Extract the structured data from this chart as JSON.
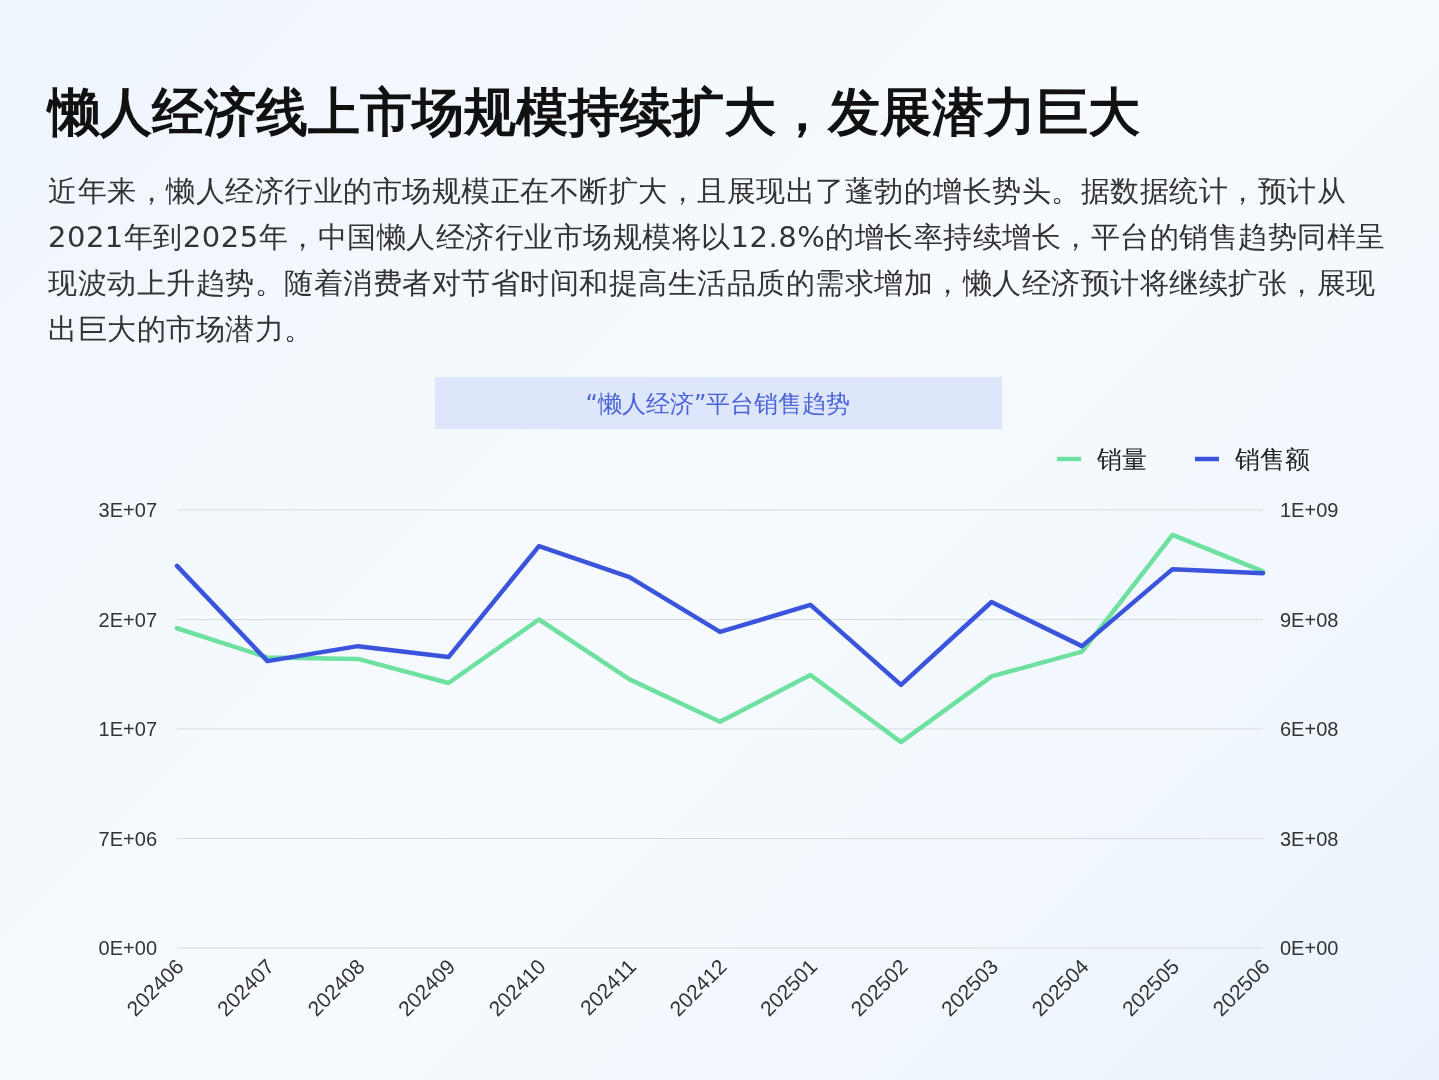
{
  "chart_data": {
    "type": "line",
    "title": "懒人经济线上市场规模持续扩大，发展潜力巨大",
    "subtitle": "近年来，懒人经济行业的市场规模正在不断扩大，且展现出了蓬勃的增长势头。据数据统计，预计从2021年到2025年，中国懒人经济行业市场规模将以12.8%的增长率持续增长，平台的销售趋势同样呈现波动上升趋势。随着消费者对节省时间和提高生活品质的需求增加，懒人经济预计将继续扩张，展现出巨大的市场潜力。",
    "annotations": [
      "“懒人经济”平台销售趋势"
    ],
    "categories": [
      "202406",
      "202407",
      "202408",
      "202409",
      "202410",
      "202411",
      "202412",
      "202501",
      "202502",
      "202503",
      "202504",
      "202505",
      "202506"
    ],
    "series": [
      {
        "name": "销量",
        "color": "#6ee0a0",
        "values": [
          21900000,
          19900000,
          19800000,
          18150000,
          22500000,
          18400000,
          15500000,
          18700000,
          14100000,
          18600000,
          20300000,
          28300000,
          25800000
        ]
      },
      {
        "name": "销售额",
        "color": "#3a55dc",
        "axis": "y2",
        "values": [
          1047000000,
          786000000,
          827000000,
          797000000,
          1101000000,
          1016000000,
          866000000,
          940000000,
          721000000,
          948000000,
          827000000,
          1038000000,
          1027000000
        ]
      }
    ],
    "ylim": [
      0,
      30000000
    ],
    "yticks": [
      {
        "value": 0,
        "label": "0E+00"
      },
      {
        "value": 7500000,
        "label": "7E+06"
      },
      {
        "value": 15000000,
        "label": "1E+07"
      },
      {
        "value": 22500000,
        "label": "2E+07"
      },
      {
        "value": 30000000,
        "label": "3E+07"
      }
    ],
    "y2lim": [
      0,
      1200000000
    ],
    "y2ticks": [
      {
        "value": 0,
        "label": "0E+00"
      },
      {
        "value": 300000000,
        "label": "3E+08"
      },
      {
        "value": 600000000,
        "label": "6E+08"
      },
      {
        "value": 900000000,
        "label": "9E+08"
      },
      {
        "value": 1200000000,
        "label": "1E+09"
      }
    ],
    "grid": "y",
    "legend": "top right",
    "marker": "none",
    "line_style": "solid"
  }
}
